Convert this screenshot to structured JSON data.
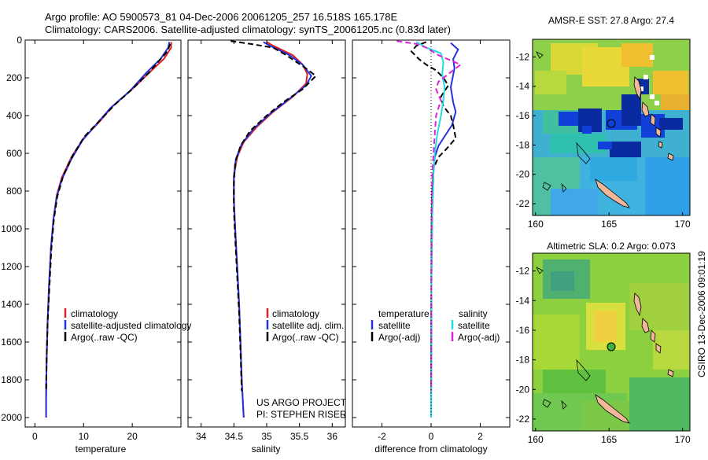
{
  "header": {
    "line1": "Argo profile: AO 5900573_81 04-Dec-2006 20061205_257 16.518S 165.178E",
    "line2": "Climatology: CARS2006. Satellite-adjusted climatology: synTS_20061205.nc (0.83d later)"
  },
  "side_stamp": "CSIRO 13-Dec-2006 09:01:19",
  "project_note": {
    "line1": "US ARGO PROJECT",
    "line2": "PI: STEPHEN RISER"
  },
  "colors": {
    "climatology": "#dd2222",
    "satellite": "#2233dd",
    "argo": "#000000",
    "sat_salinity": "#22dddd",
    "argo_salinity": "#dd22dd"
  },
  "chart_data": [
    {
      "id": "temperature",
      "type": "line",
      "xlabel": "temperature",
      "xlim": [
        -2,
        30
      ],
      "xticks": [
        0,
        10,
        20
      ],
      "ylim": [
        0,
        2050
      ],
      "yticks": [
        0,
        200,
        400,
        600,
        800,
        1000,
        1200,
        1400,
        1600,
        1800,
        2000
      ],
      "legend": [
        "climatology",
        "satellite-adjusted climatology",
        "Argo(..raw -QC)"
      ],
      "series": [
        {
          "name": "climatology",
          "style": "solid",
          "color": "#dd2222",
          "points": [
            [
              28,
              10
            ],
            [
              28,
              40
            ],
            [
              26.5,
              100
            ],
            [
              24,
              160
            ],
            [
              20,
              260
            ],
            [
              16,
              350
            ],
            [
              13,
              440
            ],
            [
              10,
              520
            ],
            [
              7.5,
              620
            ],
            [
              5.5,
              730
            ],
            [
              4.5,
              820
            ],
            [
              3.8,
              950
            ],
            [
              3.3,
              1100
            ],
            [
              2.9,
              1300
            ],
            [
              2.6,
              1500
            ],
            [
              2.4,
              1700
            ],
            [
              2.3,
              1900
            ],
            [
              2.3,
              2000
            ]
          ]
        },
        {
          "name": "satellite-adjusted climatology",
          "style": "solid",
          "color": "#2233dd",
          "points": [
            [
              27.6,
              10
            ],
            [
              27.4,
              40
            ],
            [
              25.8,
              100
            ],
            [
              23,
              170
            ],
            [
              19.5,
              270
            ],
            [
              15.5,
              360
            ],
            [
              12.5,
              450
            ],
            [
              9.8,
              530
            ],
            [
              7.5,
              630
            ],
            [
              5.5,
              740
            ],
            [
              4.5,
              830
            ],
            [
              3.8,
              950
            ],
            [
              3.3,
              1100
            ],
            [
              2.9,
              1300
            ],
            [
              2.6,
              1500
            ],
            [
              2.4,
              1700
            ],
            [
              2.3,
              1900
            ],
            [
              2.3,
              2000
            ]
          ]
        },
        {
          "name": "Argo(..raw -QC)",
          "style": "dashed",
          "color": "#000000",
          "points": [
            [
              27.8,
              20
            ],
            [
              27.2,
              60
            ],
            [
              25.5,
              110
            ],
            [
              23.5,
              170
            ],
            [
              20,
              260
            ],
            [
              16.5,
              340
            ],
            [
              13.2,
              430
            ],
            [
              10.2,
              510
            ],
            [
              7.8,
              610
            ],
            [
              5.8,
              720
            ],
            [
              4.6,
              830
            ],
            [
              3.9,
              950
            ],
            [
              3.4,
              1100
            ],
            [
              3,
              1300
            ],
            [
              2.6,
              1500
            ],
            [
              2.4,
              1700
            ],
            [
              2.3,
              1860
            ]
          ]
        }
      ]
    },
    {
      "id": "salinity",
      "type": "line",
      "xlabel": "salinity",
      "xlim": [
        33.8,
        36.2
      ],
      "xticks": [
        34,
        34.5,
        35,
        35.5,
        36
      ],
      "ylim": [
        0,
        2050
      ],
      "legend": [
        "climatology",
        "satellite adj. clim.",
        "Argo(..raw -QC)"
      ],
      "series": [
        {
          "name": "climatology",
          "style": "solid",
          "color": "#dd2222",
          "points": [
            [
              35.0,
              10
            ],
            [
              35.1,
              30
            ],
            [
              35.4,
              80
            ],
            [
              35.55,
              130
            ],
            [
              35.62,
              180
            ],
            [
              35.6,
              230
            ],
            [
              35.4,
              300
            ],
            [
              35.1,
              380
            ],
            [
              34.85,
              460
            ],
            [
              34.65,
              540
            ],
            [
              34.55,
              620
            ],
            [
              34.5,
              720
            ],
            [
              34.5,
              850
            ],
            [
              34.52,
              1000
            ],
            [
              34.55,
              1200
            ],
            [
              34.58,
              1400
            ],
            [
              34.6,
              1600
            ],
            [
              34.62,
              1800
            ],
            [
              34.65,
              2000
            ]
          ]
        },
        {
          "name": "satellite adj. clim.",
          "style": "solid",
          "color": "#2233dd",
          "points": [
            [
              34.95,
              10
            ],
            [
              35.05,
              30
            ],
            [
              35.35,
              80
            ],
            [
              35.55,
              130
            ],
            [
              35.68,
              190
            ],
            [
              35.6,
              240
            ],
            [
              35.35,
              310
            ],
            [
              35.05,
              390
            ],
            [
              34.8,
              470
            ],
            [
              34.62,
              550
            ],
            [
              34.53,
              630
            ],
            [
              34.5,
              720
            ],
            [
              34.5,
              850
            ],
            [
              34.52,
              1000
            ],
            [
              34.55,
              1200
            ],
            [
              34.58,
              1400
            ],
            [
              34.6,
              1600
            ],
            [
              34.62,
              1800
            ],
            [
              34.65,
              2000
            ]
          ]
        },
        {
          "name": "Argo(..raw -QC)",
          "style": "dashed",
          "color": "#000000",
          "points": [
            [
              34.45,
              5
            ],
            [
              34.75,
              20
            ],
            [
              35.1,
              40
            ],
            [
              35.3,
              80
            ],
            [
              35.6,
              150
            ],
            [
              35.75,
              190
            ],
            [
              35.55,
              260
            ],
            [
              35.25,
              330
            ],
            [
              35.0,
              400
            ],
            [
              34.75,
              480
            ],
            [
              34.6,
              560
            ],
            [
              34.52,
              650
            ],
            [
              34.5,
              760
            ],
            [
              34.5,
              900
            ],
            [
              34.52,
              1050
            ],
            [
              34.55,
              1250
            ],
            [
              34.58,
              1450
            ],
            [
              34.6,
              1650
            ],
            [
              34.62,
              1860
            ]
          ]
        }
      ]
    },
    {
      "id": "difference",
      "type": "line",
      "xlabel": "difference from climatology",
      "xlim": [
        -3.2,
        3.2
      ],
      "xticks": [
        -2,
        0,
        2
      ],
      "ylim": [
        0,
        2050
      ],
      "legend_titles": [
        "temperature",
        "salinity"
      ],
      "legend": [
        "satellite",
        "Argo(-adj)",
        "satellite",
        "Argo(-adj)"
      ],
      "series": [
        {
          "name": "temperature satellite",
          "style": "solid",
          "color": "#2233dd",
          "points": [
            [
              0.8,
              15
            ],
            [
              1.1,
              50
            ],
            [
              0.9,
              100
            ],
            [
              0.95,
              150
            ],
            [
              0.8,
              250
            ],
            [
              0.9,
              330
            ],
            [
              1.0,
              380
            ],
            [
              0.85,
              450
            ],
            [
              0.6,
              500
            ],
            [
              0.3,
              560
            ],
            [
              0.15,
              620
            ],
            [
              0.1,
              700
            ],
            [
              0.05,
              900
            ],
            [
              0.02,
              1200
            ],
            [
              0.01,
              1600
            ],
            [
              0,
              2000
            ]
          ]
        },
        {
          "name": "temperature Argo(-adj)",
          "style": "dashed",
          "color": "#000000",
          "points": [
            [
              -0.2,
              10
            ],
            [
              -0.6,
              30
            ],
            [
              -0.8,
              60
            ],
            [
              -0.5,
              100
            ],
            [
              -0.2,
              130
            ],
            [
              0.2,
              160
            ],
            [
              0.5,
              200
            ],
            [
              0.7,
              240
            ],
            [
              0.4,
              300
            ],
            [
              0.5,
              350
            ],
            [
              0.8,
              400
            ],
            [
              0.9,
              450
            ],
            [
              1.0,
              520
            ],
            [
              0.6,
              580
            ],
            [
              0.3,
              620
            ],
            [
              0.1,
              680
            ],
            [
              0.05,
              800
            ],
            [
              0.02,
              1000
            ],
            [
              0.01,
              1500
            ],
            [
              0,
              1860
            ]
          ]
        },
        {
          "name": "salinity satellite",
          "style": "solid",
          "color": "#22dddd",
          "points": [
            [
              -0.6,
              10
            ],
            [
              -0.2,
              40
            ],
            [
              0.4,
              70
            ],
            [
              0.5,
              120
            ],
            [
              0.45,
              180
            ],
            [
              0.55,
              250
            ],
            [
              0.5,
              320
            ],
            [
              0.4,
              400
            ],
            [
              0.25,
              500
            ],
            [
              0.15,
              600
            ],
            [
              0.1,
              700
            ],
            [
              0.05,
              900
            ],
            [
              0.02,
              1200
            ],
            [
              0.01,
              1600
            ],
            [
              0,
              2000
            ]
          ]
        },
        {
          "name": "salinity Argo(-adj)",
          "style": "dashed",
          "color": "#dd22dd",
          "points": [
            [
              -1.4,
              5
            ],
            [
              -0.6,
              20
            ],
            [
              -0.2,
              40
            ],
            [
              0.3,
              80
            ],
            [
              1.2,
              130
            ],
            [
              0.7,
              180
            ],
            [
              0.3,
              220
            ],
            [
              0.2,
              260
            ],
            [
              0.4,
              320
            ],
            [
              0.2,
              400
            ],
            [
              0.15,
              500
            ],
            [
              0.1,
              600
            ],
            [
              0.05,
              700
            ],
            [
              0.02,
              900
            ],
            [
              0.01,
              1200
            ],
            [
              0,
              1860
            ]
          ]
        },
        {
          "name": "zero line",
          "style": "dotted",
          "color": "#000000",
          "points": [
            [
              0,
              0
            ],
            [
              0,
              2000
            ]
          ]
        }
      ]
    },
    {
      "id": "amsre_map",
      "type": "heatmap",
      "title": "AMSR-E SST: 27.8 Argo: 27.4",
      "xlim": [
        159.8,
        170.5
      ],
      "ylim": [
        -22.8,
        -10.8
      ],
      "xticks": [
        160,
        165,
        170
      ],
      "yticks": [
        -12,
        -14,
        -16,
        -18,
        -20,
        -22
      ],
      "profile_marker": [
        165.178,
        -16.518
      ]
    },
    {
      "id": "sla_map",
      "type": "heatmap",
      "title": "Altimetric SLA: 0.2 Argo: 0.073",
      "xlim": [
        159.8,
        170.5
      ],
      "ylim": [
        -22.8,
        -10.8
      ],
      "xticks": [
        160,
        165,
        170
      ],
      "yticks": [
        -12,
        -14,
        -16,
        -18,
        -20,
        -22
      ],
      "profile_marker": [
        165.178,
        -16.518
      ]
    }
  ]
}
